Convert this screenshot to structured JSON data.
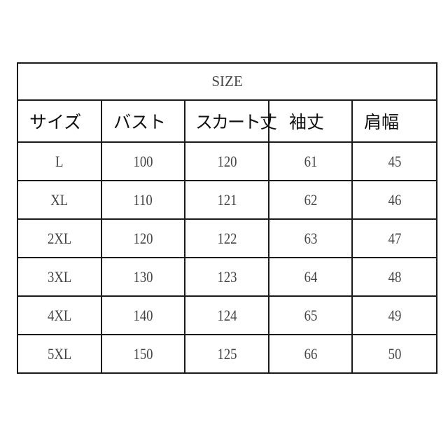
{
  "title": "SIZE",
  "headers": [
    "サイズ",
    "バスト",
    "スカート丈",
    "袖丈",
    "肩幅"
  ],
  "rows": [
    [
      "L",
      "100",
      "120",
      "61",
      "45"
    ],
    [
      "XL",
      "110",
      "121",
      "62",
      "46"
    ],
    [
      "2XL",
      "120",
      "122",
      "63",
      "47"
    ],
    [
      "3XL",
      "130",
      "123",
      "64",
      "48"
    ],
    [
      "4XL",
      "140",
      "124",
      "65",
      "49"
    ],
    [
      "5XL",
      "150",
      "125",
      "66",
      "50"
    ]
  ]
}
